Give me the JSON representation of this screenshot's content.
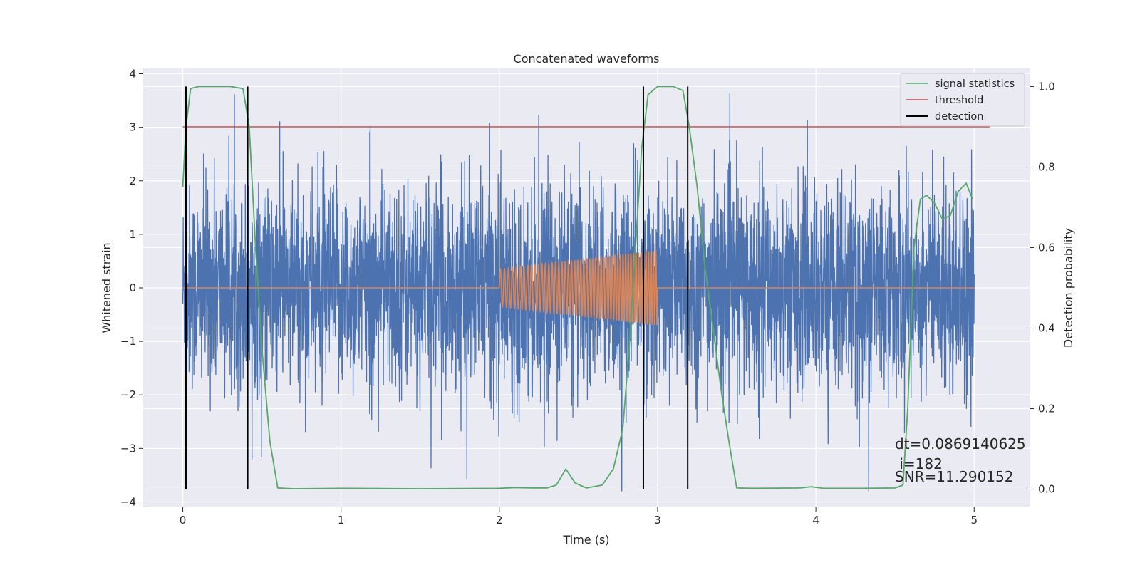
{
  "chart_data": {
    "type": "line",
    "title": "Concatenated waveforms",
    "xlabel": "Time (s)",
    "ylabel_left": "Whitened strain",
    "ylabel_right": "Detection probability",
    "xlim": [
      -0.25,
      5.35
    ],
    "ylim_left": [
      -4.1,
      4.1
    ],
    "ylim_right": [
      -0.045,
      1.045
    ],
    "x_ticks": [
      0,
      1,
      2,
      3,
      4,
      5
    ],
    "y_ticks_left": [
      -4,
      -3,
      -2,
      -1,
      0,
      1,
      2,
      3,
      4
    ],
    "y_ticks_right": [
      0.0,
      0.2,
      0.4,
      0.6,
      0.8,
      1.0
    ],
    "y_tick_labels_left": [
      "−4",
      "−3",
      "−2",
      "−1",
      "0",
      "1",
      "2",
      "3",
      "4"
    ],
    "y_tick_labels_right": [
      "0.0",
      "0.2",
      "0.4",
      "0.6",
      "0.8",
      "1.0"
    ],
    "grid": true,
    "legend_position": "top-right",
    "colors": {
      "strain": "#4c72b0",
      "template": "#dd8452",
      "signal_statistics": "#55a868",
      "threshold": "#c44e52",
      "detection": "#000000",
      "plot_bg": "#eaeaf2",
      "grid": "#ffffff"
    },
    "series": [
      {
        "axis": "left",
        "note": "whitened strain noise, approx. amplitude band",
        "x_range": [
          0,
          5
        ],
        "typical_abs": 0.75,
        "peak_abs": 3.8
      },
      {
        "axis": "left",
        "note": "injected chirp",
        "x_range": [
          2.0,
          3.0
        ],
        "amplitude_start": 0.35,
        "amplitude_end": 0.7
      },
      {
        "name": "signal statistics",
        "axis": "right",
        "x": [
          0.0,
          0.02,
          0.05,
          0.1,
          0.2,
          0.3,
          0.38,
          0.42,
          0.46,
          0.5,
          0.55,
          0.6,
          0.7,
          1.0,
          1.5,
          2.0,
          2.1,
          2.2,
          2.3,
          2.36,
          2.42,
          2.48,
          2.55,
          2.65,
          2.72,
          2.78,
          2.82,
          2.86,
          2.9,
          2.94,
          3.0,
          3.1,
          3.16,
          3.2,
          3.25,
          3.3,
          3.35,
          3.4,
          3.45,
          3.5,
          3.6,
          3.9,
          3.97,
          4.05,
          4.3,
          4.5,
          4.55,
          4.58,
          4.62,
          4.66,
          4.7,
          4.75,
          4.8,
          4.85,
          4.9,
          4.95,
          4.99
        ],
        "y": [
          0.75,
          0.9,
          0.995,
          1.0,
          1.0,
          1.0,
          0.995,
          0.9,
          0.6,
          0.35,
          0.12,
          0.003,
          0.001,
          0.002,
          0.001,
          0.002,
          0.004,
          0.003,
          0.003,
          0.01,
          0.05,
          0.015,
          0.003,
          0.01,
          0.05,
          0.15,
          0.35,
          0.6,
          0.85,
          0.98,
          1.0,
          1.0,
          0.99,
          0.9,
          0.75,
          0.55,
          0.4,
          0.25,
          0.12,
          0.003,
          0.002,
          0.003,
          0.006,
          0.002,
          0.002,
          0.003,
          0.01,
          0.2,
          0.6,
          0.72,
          0.73,
          0.71,
          0.67,
          0.68,
          0.74,
          0.76,
          0.72
        ]
      },
      {
        "name": "threshold",
        "axis": "right",
        "x": [
          0.0,
          5.1
        ],
        "y": [
          0.9,
          0.9
        ]
      },
      {
        "name": "detection",
        "axis": "right",
        "x": [
          0.02,
          0.41,
          2.91,
          3.19
        ],
        "y_range": [
          0.0,
          1.0
        ]
      }
    ],
    "legend": [
      "signal statistics",
      "threshold",
      "detection"
    ],
    "annotations": {
      "dt": "dt=0.0869140625",
      "i": " i=182",
      "snr": "SNR=11.290152"
    }
  }
}
